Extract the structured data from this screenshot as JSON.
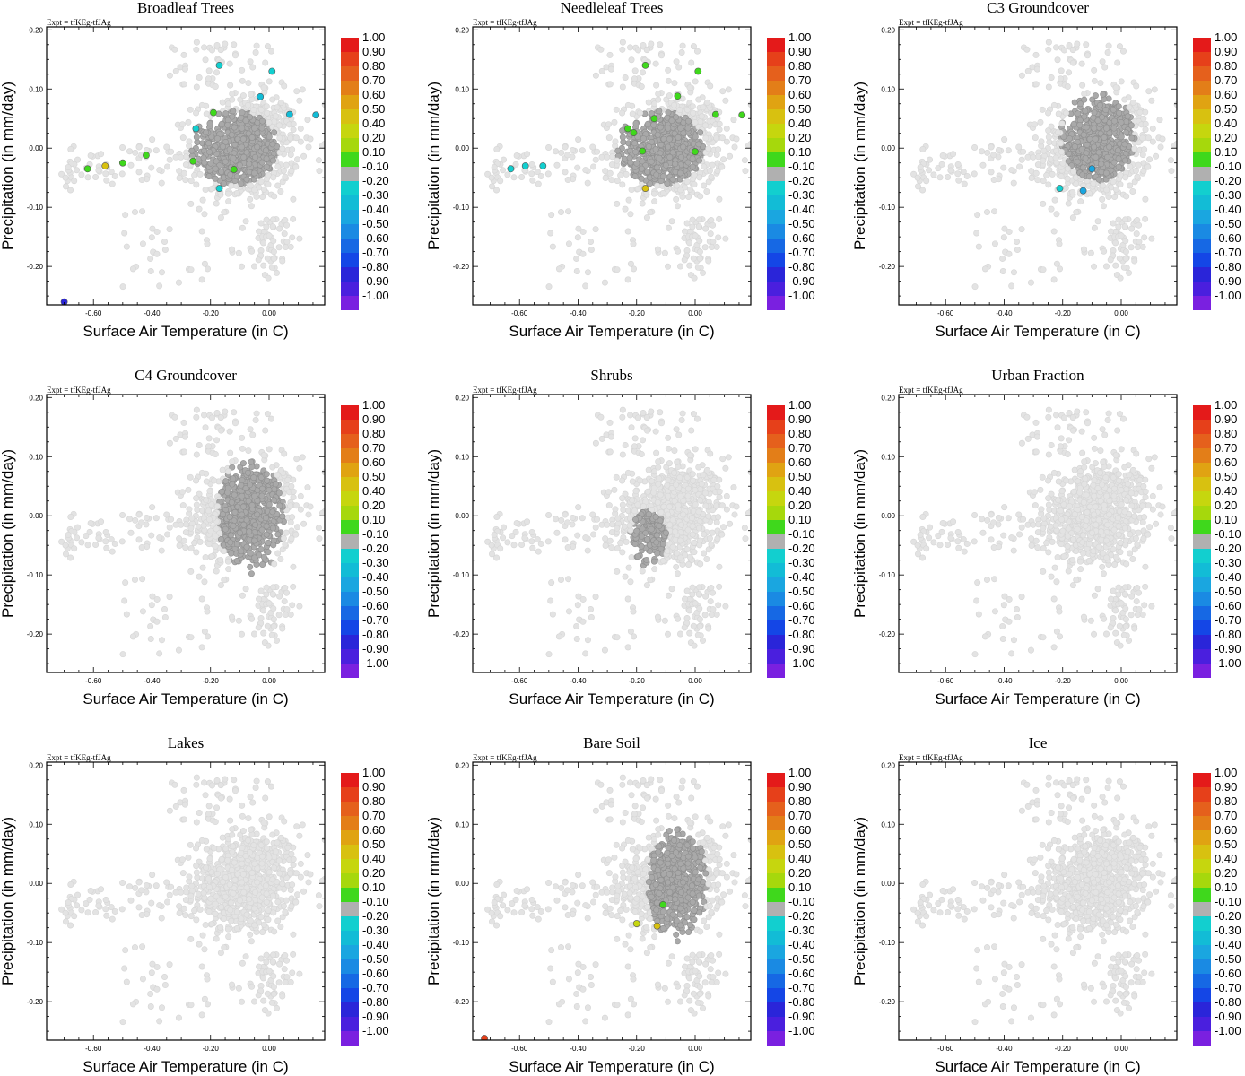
{
  "chart_data": [
    {
      "type": "scatter",
      "title": "Broadleaf Trees",
      "subtitle": "Expt = tfKEg-tfJAg",
      "xlabel": "Surface Air Temperature (in C)",
      "ylabel": "Precipitation (in mm/day)",
      "xlim": [
        -0.76,
        0.19
      ],
      "ylim": [
        -0.265,
        0.205
      ],
      "xticks": [
        "-0.60",
        "-0.40",
        "-0.20",
        "0.00"
      ],
      "yticks": [
        "0.20",
        "0.10",
        "0.00",
        "-0.10",
        "-0.20"
      ],
      "dark_cloud": {
        "center": [
          -0.12,
          0.0
        ],
        "spread": [
          0.12,
          0.05
        ],
        "shade": "#a9a9a9"
      },
      "colored_points": [
        [
          -0.62,
          -0.035,
          0.1
        ],
        [
          -0.56,
          -0.03,
          0.45
        ],
        [
          -0.5,
          -0.025,
          0.15
        ],
        [
          -0.42,
          -0.012,
          0.15
        ],
        [
          -0.26,
          -0.022,
          0.15
        ],
        [
          -0.19,
          0.06,
          0.15
        ],
        [
          -0.12,
          -0.036,
          0.15
        ],
        [
          -0.25,
          0.033,
          -0.2
        ],
        [
          -0.17,
          -0.068,
          -0.25
        ],
        [
          -0.17,
          0.14,
          -0.2
        ],
        [
          -0.03,
          0.087,
          -0.3
        ],
        [
          0.01,
          0.13,
          -0.25
        ],
        [
          0.07,
          0.057,
          -0.3
        ],
        [
          0.16,
          0.056,
          -0.3
        ],
        [
          -0.7,
          -0.26,
          -0.85
        ]
      ]
    },
    {
      "type": "scatter",
      "title": "Needleleaf Trees",
      "subtitle": "Expt = tfKEg-tfJAg",
      "xlabel": "Surface Air Temperature (in C)",
      "ylabel": "Precipitation (in mm/day)",
      "xlim": [
        -0.76,
        0.19
      ],
      "ylim": [
        -0.265,
        0.205
      ],
      "xticks": [
        "-0.60",
        "-0.40",
        "-0.20",
        "0.00"
      ],
      "yticks": [
        "0.20",
        "0.10",
        "0.00",
        "-0.10",
        "-0.20"
      ],
      "dark_cloud": {
        "center": [
          -0.12,
          0.0
        ],
        "spread": [
          0.12,
          0.05
        ],
        "shade": "#a9a9a9"
      },
      "colored_points": [
        [
          -0.17,
          0.14,
          0.15
        ],
        [
          -0.23,
          0.033,
          0.15
        ],
        [
          -0.21,
          0.026,
          0.15
        ],
        [
          -0.14,
          0.05,
          0.15
        ],
        [
          -0.06,
          0.088,
          0.15
        ],
        [
          0.01,
          0.13,
          0.15
        ],
        [
          0.07,
          0.057,
          0.15
        ],
        [
          0.16,
          0.056,
          0.15
        ],
        [
          -0.18,
          -0.005,
          0.15
        ],
        [
          0.0,
          -0.006,
          0.15
        ],
        [
          -0.17,
          -0.068,
          0.45
        ],
        [
          -0.63,
          -0.035,
          -0.2
        ],
        [
          -0.58,
          -0.03,
          -0.25
        ],
        [
          -0.52,
          -0.03,
          -0.2
        ]
      ]
    },
    {
      "type": "scatter",
      "title": "C3 Groundcover",
      "subtitle": "Expt = tfKEg-tfJAg",
      "xlabel": "Surface Air Temperature (in C)",
      "ylabel": "Precipitation (in mm/day)",
      "xlim": [
        -0.76,
        0.19
      ],
      "ylim": [
        -0.265,
        0.205
      ],
      "xticks": [
        "-0.60",
        "-0.40",
        "-0.20",
        "0.00"
      ],
      "yticks": [
        "0.20",
        "0.10",
        "0.00",
        "-0.10",
        "-0.20"
      ],
      "dark_cloud": {
        "center": [
          -0.08,
          0.02
        ],
        "spread": [
          0.1,
          0.06
        ],
        "shade": "#a9a9a9"
      },
      "colored_points": [
        [
          -0.21,
          -0.068,
          -0.25
        ],
        [
          -0.13,
          -0.072,
          -0.45
        ],
        [
          -0.1,
          -0.035,
          -0.45
        ]
      ]
    },
    {
      "type": "scatter",
      "title": "C4 Groundcover",
      "subtitle": "Expt = tfKEg-tfJAg",
      "xlabel": "Surface Air Temperature (in C)",
      "ylabel": "Precipitation (in mm/day)",
      "xlim": [
        -0.76,
        0.19
      ],
      "ylim": [
        -0.265,
        0.205
      ],
      "xticks": [
        "-0.60",
        "-0.40",
        "-0.20",
        "0.00"
      ],
      "yticks": [
        "0.20",
        "0.10",
        "0.00",
        "-0.10",
        "-0.20"
      ],
      "dark_cloud": {
        "center": [
          -0.06,
          0.0
        ],
        "spread": [
          0.09,
          0.08
        ],
        "shade": "#a9a9a9"
      },
      "colored_points": []
    },
    {
      "type": "scatter",
      "title": "Shrubs",
      "subtitle": "Expt = tfKEg-tfJAg",
      "xlabel": "Surface Air Temperature (in C)",
      "ylabel": "Precipitation (in mm/day)",
      "xlim": [
        -0.76,
        0.19
      ],
      "ylim": [
        -0.265,
        0.205
      ],
      "xticks": [
        "-0.60",
        "-0.40",
        "-0.20",
        "0.00"
      ],
      "yticks": [
        "0.20",
        "0.10",
        "0.00",
        "-0.10",
        "-0.20"
      ],
      "dark_cloud": {
        "center": [
          -0.16,
          -0.04
        ],
        "spread": [
          0.05,
          0.04
        ],
        "shade": "#a9a9a9"
      },
      "colored_points": []
    },
    {
      "type": "scatter",
      "title": "Urban Fraction",
      "subtitle": "Expt = tfKEg-tfJAg",
      "xlabel": "Surface Air Temperature (in C)",
      "ylabel": "Precipitation (in mm/day)",
      "xlim": [
        -0.76,
        0.19
      ],
      "ylim": [
        -0.265,
        0.205
      ],
      "xticks": [
        "-0.60",
        "-0.40",
        "-0.20",
        "0.00"
      ],
      "yticks": [
        "0.20",
        "0.10",
        "0.00",
        "-0.10",
        "-0.20"
      ],
      "dark_cloud": null,
      "colored_points": []
    },
    {
      "type": "scatter",
      "title": "Lakes",
      "subtitle": "Expt = tfKEg-tfJAg",
      "xlabel": "Surface Air Temperature (in C)",
      "ylabel": "Precipitation (in mm/day)",
      "xlim": [
        -0.76,
        0.19
      ],
      "ylim": [
        -0.265,
        0.205
      ],
      "xticks": [
        "-0.60",
        "-0.40",
        "-0.20",
        "0.00"
      ],
      "yticks": [
        "0.20",
        "0.10",
        "0.00",
        "-0.10",
        "-0.20"
      ],
      "dark_cloud": null,
      "colored_points": []
    },
    {
      "type": "scatter",
      "title": "Bare Soil",
      "subtitle": "Expt = tfKEg-tfJAg",
      "xlabel": "Surface Air Temperature (in C)",
      "ylabel": "Precipitation (in mm/day)",
      "xlim": [
        -0.76,
        0.19
      ],
      "ylim": [
        -0.265,
        0.205
      ],
      "xticks": [
        "-0.60",
        "-0.40",
        "-0.20",
        "0.00"
      ],
      "yticks": [
        "0.20",
        "0.10",
        "0.00",
        "-0.10",
        "-0.20"
      ],
      "dark_cloud": {
        "center": [
          -0.06,
          0.0
        ],
        "spread": [
          0.08,
          0.08
        ],
        "shade": "#a9a9a9"
      },
      "colored_points": [
        [
          -0.2,
          -0.068,
          0.4
        ],
        [
          -0.11,
          -0.036,
          0.15
        ],
        [
          -0.13,
          -0.072,
          0.45
        ],
        [
          -0.72,
          -0.262,
          0.95
        ]
      ]
    },
    {
      "type": "scatter",
      "title": "Ice",
      "subtitle": "Expt = tfKEg-tfJAg",
      "xlabel": "Surface Air Temperature (in C)",
      "ylabel": "Precipitation (in mm/day)",
      "xlim": [
        -0.76,
        0.19
      ],
      "ylim": [
        -0.265,
        0.205
      ],
      "xticks": [
        "-0.60",
        "-0.40",
        "-0.20",
        "0.00"
      ],
      "yticks": [
        "0.20",
        "0.10",
        "0.00",
        "-0.10",
        "-0.20"
      ],
      "dark_cloud": null,
      "colored_points": []
    }
  ],
  "colorbar": {
    "labels": [
      "1.00",
      "0.90",
      "0.80",
      "0.70",
      "0.60",
      "0.50",
      "0.40",
      "0.20",
      "0.10",
      "-0.10",
      "-0.20",
      "-0.30",
      "-0.40",
      "-0.50",
      "-0.60",
      "-0.70",
      "-0.80",
      "-0.90",
      "-1.00"
    ],
    "colors": [
      "#e41a1a",
      "#e6401a",
      "#e5601c",
      "#e37e18",
      "#e0a312",
      "#d8c110",
      "#c6d60e",
      "#a6d80c",
      "#3fd81c",
      "#b0b0b0",
      "#12cfcf",
      "#12bcd6",
      "#1aa6e0",
      "#1a8ae3",
      "#1668e4",
      "#1446e6",
      "#2a25d9",
      "#4a1fde",
      "#7a20e0"
    ],
    "light_point": "#e3e3e3",
    "neutral_point": "#a9a9a9"
  }
}
